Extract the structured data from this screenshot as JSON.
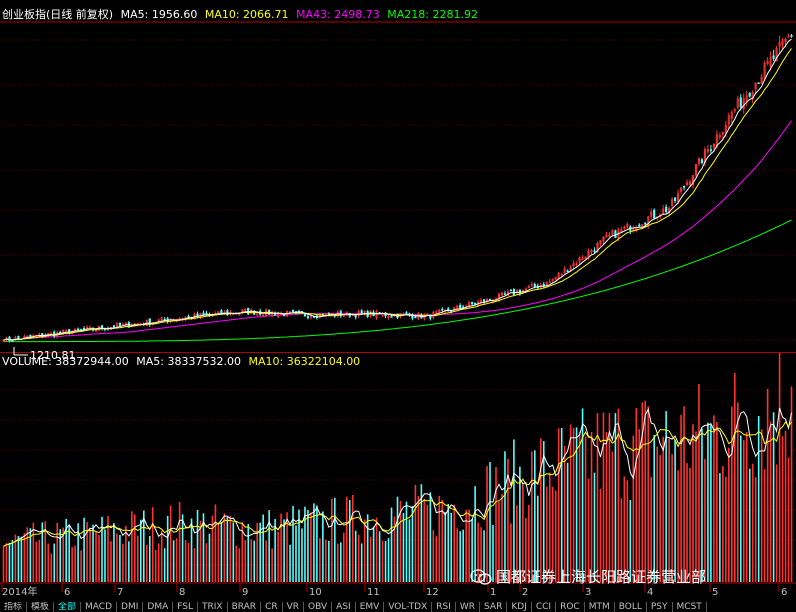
{
  "header": {
    "title": "创业板指(日线 前复权)",
    "ma5_label": "MA5:",
    "ma5_value": "1956.60",
    "ma10_label": "MA10:",
    "ma10_value": "2066.71",
    "ma43_label": "MA43:",
    "ma43_value": "2498.73",
    "ma218_label": "MA218:",
    "ma218_value": "2281.92"
  },
  "volume_header": {
    "volume_label": "VOLUME:",
    "volume_value": "38372944.00",
    "ma5_label": "MA5:",
    "ma5_value": "38337532.00",
    "ma10_label": "MA10:",
    "ma10_value": "36322104.00"
  },
  "low_marker": "1210.81",
  "watermark": "国都证券上海长阳路证券营业部",
  "tabs": [
    "指标",
    "模板",
    "全部",
    "MACD",
    "DMI",
    "DMA",
    "FSL",
    "TRIX",
    "BRAR",
    "CR",
    "VR",
    "OBV",
    "ASI",
    "EMV",
    "VOL-TDX",
    "RSI",
    "WR",
    "SAR",
    "KDJ",
    "CCI",
    "ROC",
    "MTM",
    "BOLL",
    "PSY",
    "MCST"
  ],
  "colors": {
    "up": "#ff3232",
    "down": "#54ffff",
    "ma5": "#ffffff",
    "ma10": "#ffff00",
    "ma43": "#ff00ff",
    "ma218": "#00ff00",
    "axis": "#b00000"
  },
  "chart_data": {
    "type": "candlestick",
    "title": "创业板指(日线 前复权)",
    "x_axis_labels": [
      "2014年",
      "6",
      "7",
      "8",
      "9",
      "10",
      "11",
      "12",
      "1",
      "2",
      "3",
      "4",
      "5",
      "6"
    ],
    "price_anchors": [
      [
        "2014-05",
        1250
      ],
      [
        "2014-06",
        1320
      ],
      [
        "2014-07",
        1380
      ],
      [
        "2014-08",
        1450
      ],
      [
        "2014-09",
        1500
      ],
      [
        "2014-10",
        1470
      ],
      [
        "2014-11",
        1480
      ],
      [
        "2014-12",
        1460
      ],
      [
        "2015-01",
        1600
      ],
      [
        "2015-02",
        1750
      ],
      [
        "2015-03",
        2150
      ],
      [
        "2015-04",
        2400
      ],
      [
        "2015-05",
        3200
      ],
      [
        "2015-06",
        3900
      ]
    ],
    "price_low": 1210.81,
    "ma_last": {
      "MA5": 1956.6,
      "MA10": 2066.71,
      "MA43": 2498.73,
      "MA218": 2281.92
    },
    "volume_last": {
      "VOLUME": 38372944.0,
      "MA5": 38337532.0,
      "MA10": 36322104.0
    },
    "volume_anchors": [
      [
        "2014-05",
        8000000
      ],
      [
        "2014-07",
        10000000
      ],
      [
        "2014-09",
        12000000
      ],
      [
        "2014-11",
        11000000
      ],
      [
        "2015-01",
        13000000
      ],
      [
        "2015-02",
        15000000
      ],
      [
        "2015-03",
        22000000
      ],
      [
        "2015-04",
        28000000
      ],
      [
        "2015-05",
        30000000
      ],
      [
        "2015-06",
        38000000
      ]
    ],
    "grid": true
  }
}
